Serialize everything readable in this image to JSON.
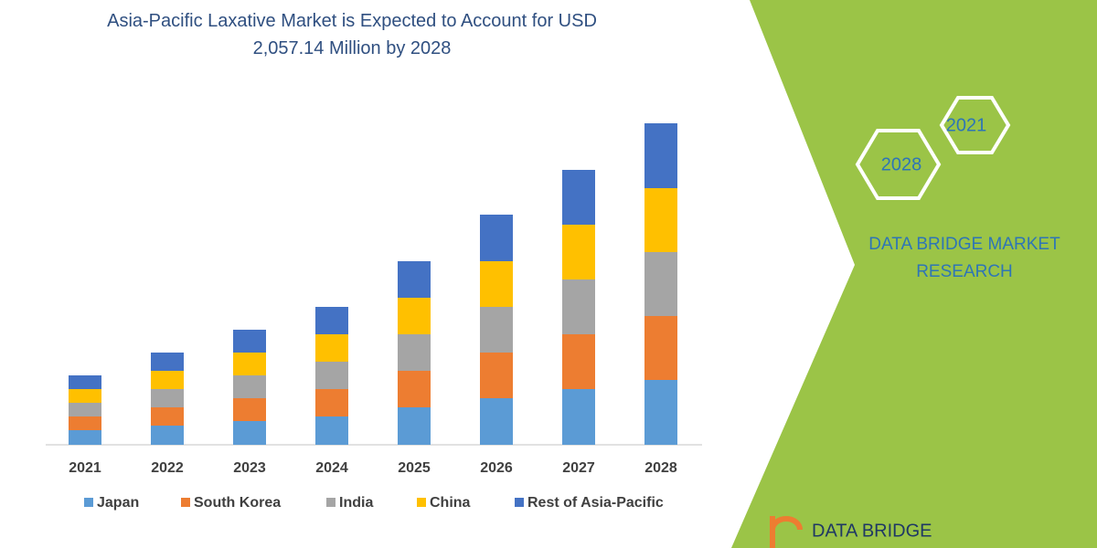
{
  "chart_data": {
    "type": "stacked_bar",
    "title": "Asia-Pacific Laxative Market is Expected to Account for USD 2,057.14 Million by 2028",
    "categories": [
      "2021",
      "2022",
      "2023",
      "2024",
      "2025",
      "2026",
      "2027",
      "2028"
    ],
    "series": [
      {
        "name": "Japan",
        "color": "#5b9bd5",
        "values": [
          16,
          21,
          26,
          31,
          41,
          51,
          61,
          71
        ]
      },
      {
        "name": "South Korea",
        "color": "#ed7d31",
        "values": [
          15,
          20,
          25,
          30,
          40,
          50,
          60,
          70
        ]
      },
      {
        "name": "India",
        "color": "#a5a5a5",
        "values": [
          15,
          20,
          25,
          30,
          40,
          50,
          60,
          70
        ]
      },
      {
        "name": "China",
        "color": "#ffc000",
        "values": [
          15,
          20,
          25,
          30,
          40,
          50,
          60,
          70
        ]
      },
      {
        "name": "Rest of Asia-Pacific",
        "color": "#4472c4",
        "values": [
          15,
          20,
          25,
          30,
          40,
          51,
          60,
          71
        ]
      }
    ],
    "ylim": [
      0,
      352
    ]
  },
  "brand": {
    "hex_labels": [
      "2021",
      "2028"
    ],
    "name": "DATA BRIDGE MARKET RESEARCH",
    "logo": "DATA BRIDGE"
  }
}
